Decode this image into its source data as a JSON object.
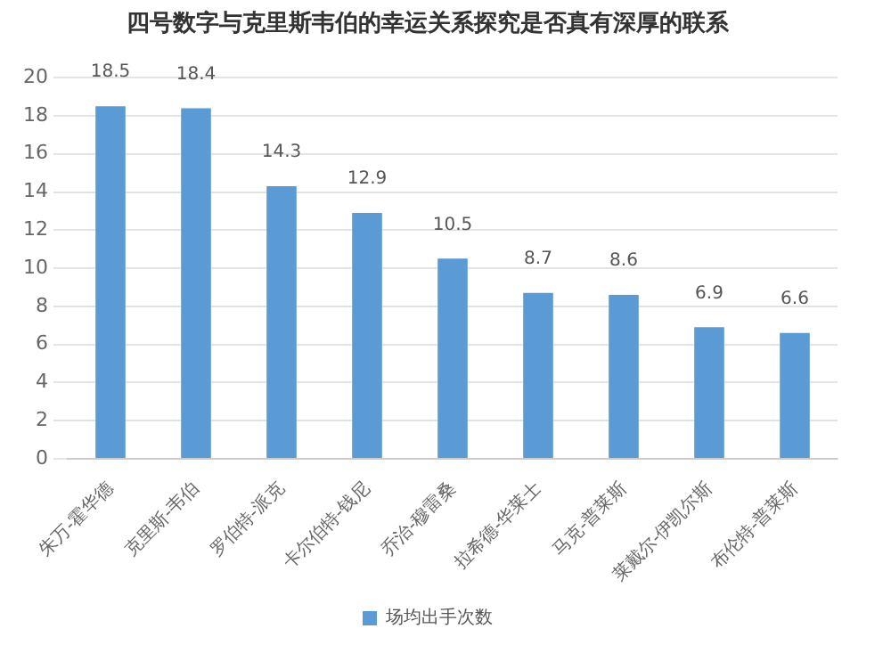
{
  "chart_data": {
    "type": "bar",
    "title": "四号数字与克里斯韦伯的幸运关系探究是否真有深厚的联系",
    "categories": [
      "朱万-霍华德",
      "克里斯-韦伯",
      "罗伯特-派克",
      "卡尔伯特-钱尼",
      "乔治-穆雷桑",
      "拉希德-华莱士",
      "马克-普莱斯",
      "莱戴尔-伊凯尔斯",
      "布伦特-普莱斯"
    ],
    "series": [
      {
        "name": "场均出手次数",
        "color": "#5b9bd5",
        "values": [
          18.5,
          18.4,
          14.3,
          12.9,
          10.5,
          8.7,
          8.6,
          6.9,
          6.6
        ]
      }
    ],
    "ylim": [
      0,
      20
    ],
    "yticks": [
      0,
      2,
      4,
      6,
      8,
      10,
      12,
      14,
      16,
      18,
      20
    ],
    "grid": "y",
    "legend": "bottom",
    "data_labels": true
  }
}
